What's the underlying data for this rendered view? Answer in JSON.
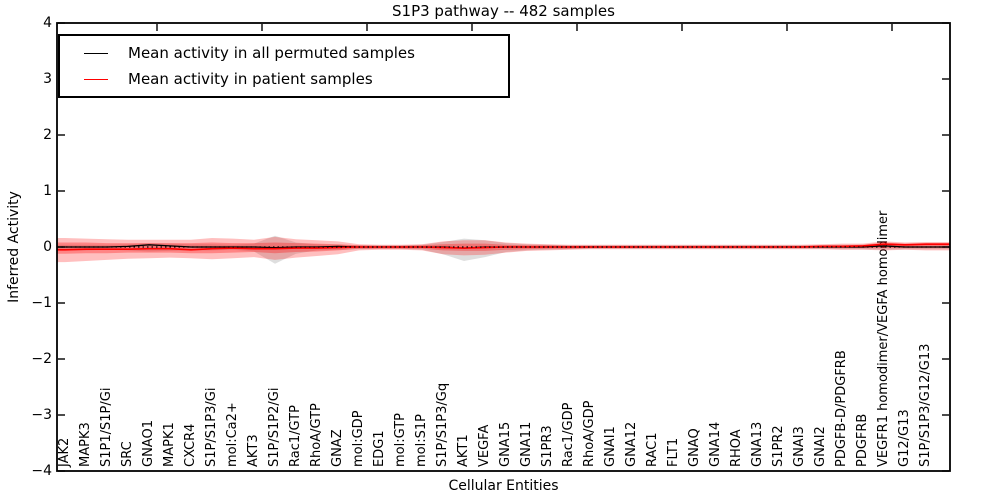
{
  "title": "S1P3 pathway -- 482 samples",
  "axes": {
    "x_label": "Cellular Entities",
    "y_label": "Inferred Activity",
    "y_ticks": [
      "4",
      "3",
      "2",
      "1",
      "0",
      "−1",
      "−2",
      "−3",
      "−4"
    ]
  },
  "legend": {
    "items": [
      {
        "label": "Mean activity in all permuted samples",
        "color": "#000000"
      },
      {
        "label": "Mean activity in patient samples",
        "color": "#ff0000"
      }
    ]
  },
  "colors": {
    "permuted_line": "#000000",
    "patient_line": "#ff0000",
    "patient_band": "#ff0000",
    "permuted_band": "#000000",
    "background": "#ffffff"
  },
  "chart_data": {
    "type": "line",
    "title": "S1P3 pathway -- 482 samples",
    "xlabel": "Cellular Entities",
    "ylabel": "Inferred Activity",
    "ylim": [
      -4,
      4
    ],
    "yticks": [
      4,
      3,
      2,
      1,
      0,
      -1,
      -2,
      -3,
      -4
    ],
    "grid": false,
    "legend_position": "upper left",
    "zero_line": {
      "style": "dotted",
      "color": "#000000",
      "y": 0
    },
    "categories": [
      "JAK2",
      "MAPK3",
      "S1P1/S1P/Gi",
      "SRC",
      "GNAO1",
      "MAPK1",
      "CXCR4",
      "S1P/S1P3/Gi",
      "mol:Ca2+",
      "AKT3",
      "S1P/S1P2/Gi",
      "Rac1/GTP",
      "RhoA/GTP",
      "GNAZ",
      "mol:GDP",
      "EDG1",
      "mol:GTP",
      "mol:S1P",
      "S1P/S1P3/Gq",
      "AKT1",
      "VEGFA",
      "GNA15",
      "GNA11",
      "S1PR3",
      "Rac1/GDP",
      "RhoA/GDP",
      "GNAI1",
      "GNA12",
      "RAC1",
      "FLT1",
      "GNAQ",
      "GNA14",
      "RHOA",
      "GNA13",
      "S1PR2",
      "GNAI3",
      "GNAI2",
      "PDGFB-D/PDGFRB",
      "PDGFRB",
      "VEGFR1 homodimer/VEGFA homodimer",
      "G12/G13",
      "S1P/S1P3/G12/G13"
    ],
    "series": [
      {
        "name": "Mean activity in all permuted samples",
        "color": "#000000",
        "values": [
          0.0,
          0.0,
          0.0,
          0.01,
          0.04,
          0.02,
          0.0,
          0.0,
          0.0,
          0.0,
          -0.01,
          0.0,
          0.0,
          0.01,
          0.0,
          0.0,
          0.0,
          0.0,
          0.0,
          -0.02,
          0.0,
          0.0,
          0.0,
          0.0,
          0.0,
          0.0,
          0.0,
          0.0,
          0.0,
          0.0,
          0.0,
          0.0,
          0.0,
          0.0,
          0.0,
          0.0,
          0.0,
          0.0,
          0.0,
          0.02,
          0.0,
          0.0
        ]
      },
      {
        "name": "Mean activity in patient samples",
        "color": "#ff0000",
        "values": [
          -0.05,
          -0.04,
          -0.04,
          -0.04,
          -0.03,
          -0.03,
          -0.05,
          -0.03,
          -0.02,
          -0.03,
          -0.03,
          -0.02,
          -0.02,
          -0.01,
          0.0,
          0.0,
          0.0,
          0.0,
          -0.01,
          -0.02,
          -0.01,
          0.0,
          0.0,
          0.0,
          0.0,
          0.0,
          0.0,
          0.0,
          0.0,
          0.0,
          0.0,
          0.0,
          0.0,
          0.0,
          0.0,
          0.0,
          0.01,
          0.01,
          0.02,
          0.05,
          0.04,
          0.05
        ]
      }
    ],
    "bands": [
      {
        "name": "permuted-activity-spread",
        "color": "#000000",
        "opacity": 0.13,
        "upper": [
          0.04,
          0.04,
          0.04,
          0.05,
          0.07,
          0.06,
          0.05,
          0.05,
          0.04,
          0.06,
          0.2,
          0.08,
          0.05,
          0.04,
          0.03,
          0.03,
          0.03,
          0.04,
          0.09,
          0.15,
          0.12,
          0.07,
          0.05,
          0.04,
          0.03,
          0.03,
          0.03,
          0.03,
          0.03,
          0.03,
          0.03,
          0.03,
          0.03,
          0.03,
          0.03,
          0.03,
          0.03,
          0.04,
          0.04,
          0.04,
          0.03,
          0.03
        ],
        "lower": [
          -0.06,
          -0.06,
          -0.05,
          -0.06,
          -0.08,
          -0.07,
          -0.06,
          -0.06,
          -0.05,
          -0.08,
          -0.3,
          -0.12,
          -0.06,
          -0.05,
          -0.04,
          -0.03,
          -0.03,
          -0.05,
          -0.13,
          -0.25,
          -0.18,
          -0.09,
          -0.06,
          -0.05,
          -0.04,
          -0.03,
          -0.03,
          -0.03,
          -0.03,
          -0.03,
          -0.03,
          -0.03,
          -0.03,
          -0.03,
          -0.03,
          -0.03,
          -0.03,
          -0.04,
          -0.04,
          -0.05,
          -0.04,
          -0.04
        ]
      },
      {
        "name": "patient-activity-spread-outer",
        "color": "#ff0000",
        "opacity": 0.25,
        "upper": [
          0.16,
          0.15,
          0.14,
          0.13,
          0.13,
          0.13,
          0.13,
          0.16,
          0.15,
          0.13,
          0.18,
          0.14,
          0.12,
          0.1,
          0.05,
          0.04,
          0.04,
          0.05,
          0.1,
          0.12,
          0.12,
          0.08,
          0.06,
          0.05,
          0.04,
          0.04,
          0.04,
          0.04,
          0.04,
          0.04,
          0.04,
          0.04,
          0.04,
          0.04,
          0.04,
          0.04,
          0.05,
          0.06,
          0.06,
          0.1,
          0.08,
          0.09
        ],
        "lower": [
          -0.27,
          -0.25,
          -0.23,
          -0.21,
          -0.2,
          -0.19,
          -0.2,
          -0.22,
          -0.2,
          -0.18,
          -0.23,
          -0.19,
          -0.16,
          -0.13,
          -0.06,
          -0.05,
          -0.05,
          -0.06,
          -0.13,
          -0.15,
          -0.14,
          -0.1,
          -0.07,
          -0.06,
          -0.05,
          -0.04,
          -0.04,
          -0.04,
          -0.04,
          -0.04,
          -0.04,
          -0.04,
          -0.04,
          -0.04,
          -0.04,
          -0.04,
          -0.04,
          -0.05,
          -0.05,
          -0.06,
          -0.05,
          -0.06
        ]
      },
      {
        "name": "patient-activity-spread-inner",
        "color": "#ff0000",
        "opacity": 0.3,
        "upper": [
          0.08,
          0.08,
          0.07,
          0.07,
          0.07,
          0.07,
          0.07,
          0.08,
          0.07,
          0.07,
          0.08,
          0.07,
          0.06,
          0.05,
          0.03,
          0.02,
          0.02,
          0.03,
          0.05,
          0.06,
          0.06,
          0.04,
          0.03,
          0.03,
          0.02,
          0.02,
          0.02,
          0.02,
          0.02,
          0.02,
          0.02,
          0.02,
          0.02,
          0.02,
          0.02,
          0.02,
          0.03,
          0.03,
          0.04,
          0.08,
          0.06,
          0.07
        ],
        "lower": [
          -0.12,
          -0.11,
          -0.11,
          -0.1,
          -0.1,
          -0.1,
          -0.11,
          -0.11,
          -0.1,
          -0.09,
          -0.11,
          -0.09,
          -0.08,
          -0.06,
          -0.03,
          -0.03,
          -0.03,
          -0.03,
          -0.06,
          -0.07,
          -0.07,
          -0.05,
          -0.04,
          -0.03,
          -0.03,
          -0.02,
          -0.02,
          -0.02,
          -0.02,
          -0.02,
          -0.02,
          -0.02,
          -0.02,
          -0.02,
          -0.02,
          -0.02,
          -0.02,
          -0.02,
          -0.02,
          -0.02,
          -0.02,
          -0.02
        ]
      }
    ]
  }
}
